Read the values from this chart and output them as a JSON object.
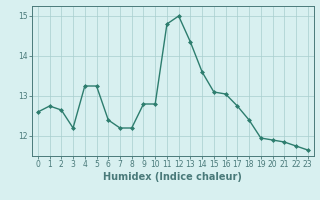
{
  "x": [
    0,
    1,
    2,
    3,
    4,
    5,
    6,
    7,
    8,
    9,
    10,
    11,
    12,
    13,
    14,
    15,
    16,
    17,
    18,
    19,
    20,
    21,
    22,
    23
  ],
  "y": [
    12.6,
    12.75,
    12.65,
    12.2,
    13.25,
    13.25,
    12.4,
    12.2,
    12.2,
    12.8,
    12.8,
    14.8,
    15.0,
    14.35,
    13.6,
    13.1,
    13.05,
    12.75,
    12.4,
    11.95,
    11.9,
    11.85,
    11.75,
    11.65
  ],
  "line_color": "#2d7d6e",
  "marker": "D",
  "marker_size": 2.0,
  "linewidth": 1.0,
  "bg_color": "#d8f0f0",
  "grid_color": "#a8cece",
  "xlabel": "Humidex (Indice chaleur)",
  "xlim": [
    -0.5,
    23.5
  ],
  "ylim": [
    11.5,
    15.25
  ],
  "yticks": [
    12,
    13,
    14,
    15
  ],
  "xticks": [
    0,
    1,
    2,
    3,
    4,
    5,
    6,
    7,
    8,
    9,
    10,
    11,
    12,
    13,
    14,
    15,
    16,
    17,
    18,
    19,
    20,
    21,
    22,
    23
  ],
  "tick_fontsize": 5.5,
  "xlabel_fontsize": 7.0,
  "axis_color": "#4a7a7a",
  "spine_color": "#4a7a7a"
}
